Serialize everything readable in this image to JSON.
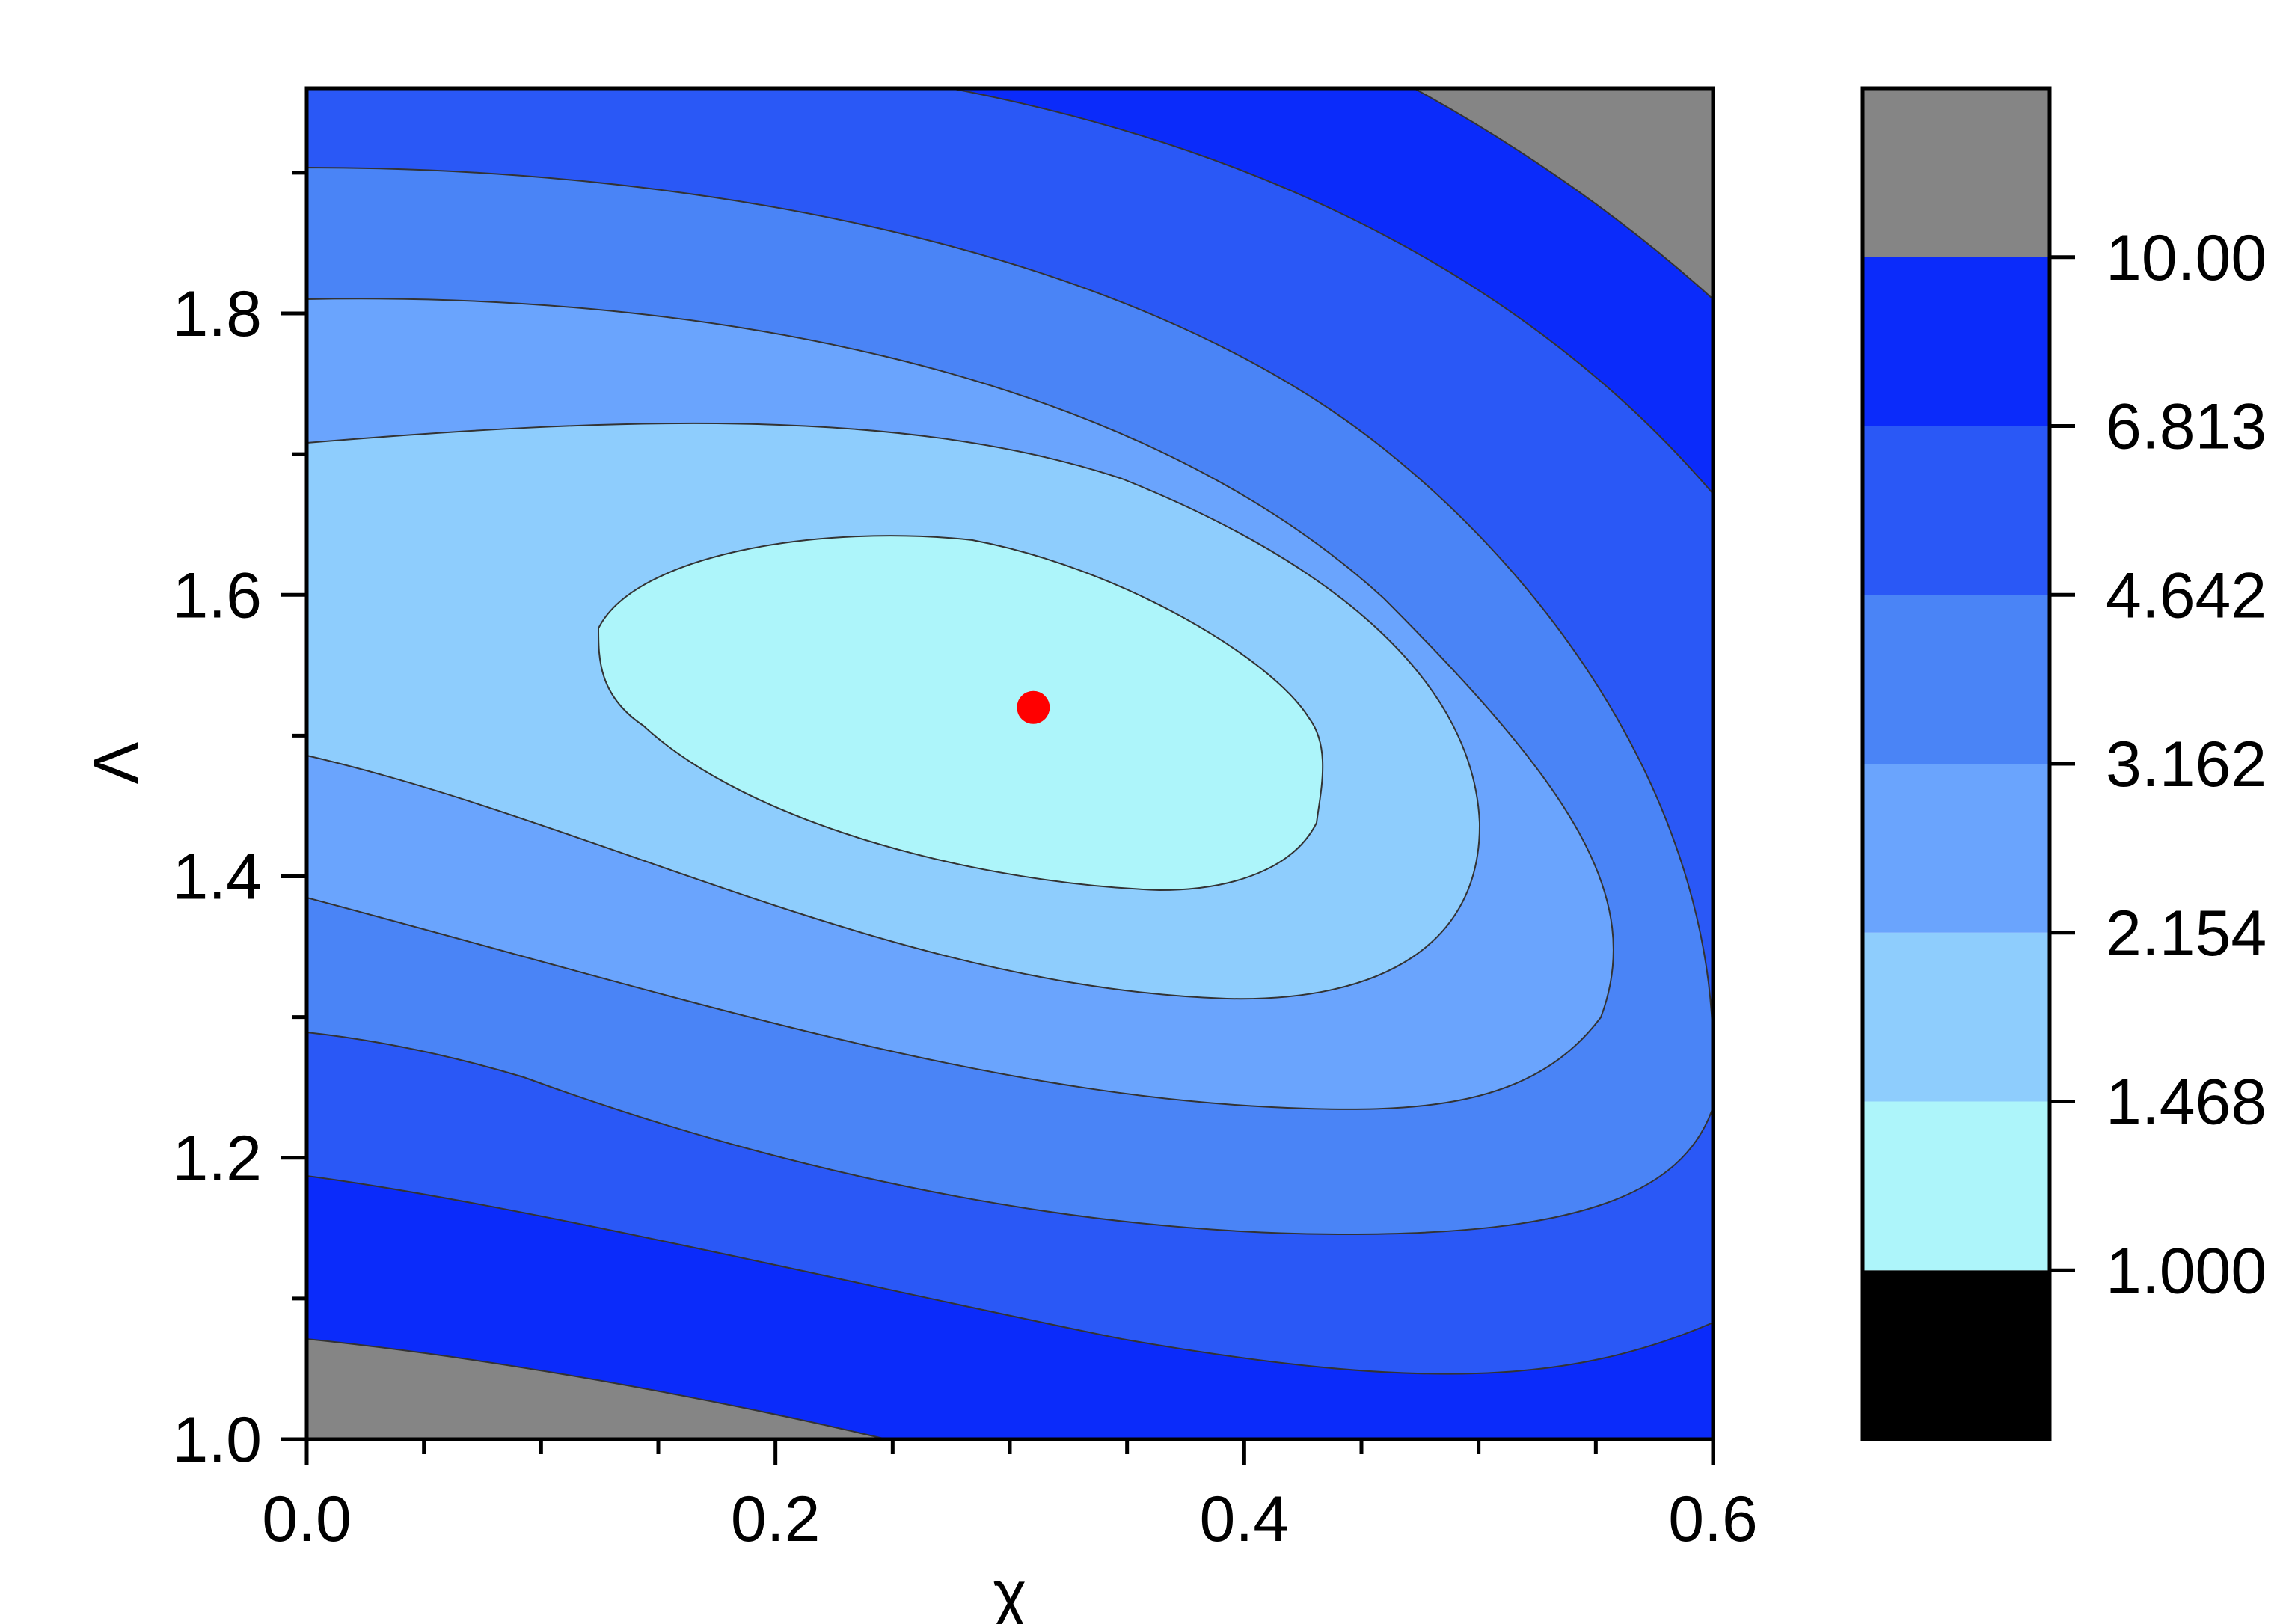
{
  "chart_data": {
    "type": "contour",
    "xlabel": "χ",
    "ylabel": "Λ",
    "xlim": [
      0.0,
      0.6
    ],
    "ylim": [
      1.0,
      1.96
    ],
    "x_ticks": [
      "0.0",
      "0.2",
      "0.4",
      "0.6"
    ],
    "y_ticks": [
      "1.0",
      "1.2",
      "1.4",
      "1.6",
      "1.8"
    ],
    "grid": false,
    "colorbar": {
      "placement": "right",
      "levels": [
        "1.000",
        "1.468",
        "2.154",
        "3.162",
        "4.642",
        "6.813",
        "10.00"
      ],
      "colors": [
        "#000000",
        "#adf5fa",
        "#8ecdfd",
        "#6aa4fd",
        "#4a84f6",
        "#2a58f6",
        "#0b2bfa",
        "#858585"
      ]
    },
    "contours": [
      {
        "level_index": 0,
        "points": [
          [
            0.0,
            1.07
          ],
          [
            0.15,
            1.025
          ],
          [
            0.25,
            1.0
          ]
        ],
        "fill": "#858585",
        "region": "bottom-left-corner"
      },
      {
        "level_index": 1,
        "points": [
          [
            0.0,
            1.18
          ],
          [
            0.2,
            1.13
          ],
          [
            0.35,
            1.08
          ],
          [
            0.5,
            1.06
          ],
          [
            0.6,
            1.08
          ]
        ],
        "fill": "#0b2bfa"
      },
      {
        "level_index": 2,
        "points": [
          [
            0.0,
            1.29
          ],
          [
            0.15,
            1.25
          ],
          [
            0.3,
            1.19
          ],
          [
            0.45,
            1.14
          ],
          [
            0.55,
            1.16
          ],
          [
            0.6,
            1.25
          ]
        ],
        "fill": "#2a58f6"
      },
      {
        "level_index": 3,
        "points": [
          [
            0.0,
            1.38
          ],
          [
            0.15,
            1.35
          ],
          [
            0.3,
            1.28
          ],
          [
            0.45,
            1.24
          ],
          [
            0.55,
            1.31
          ],
          [
            0.6,
            1.5
          ]
        ],
        "fill": "#4a84f6"
      },
      {
        "level_index": 4,
        "points": [
          [
            0.0,
            1.49
          ],
          [
            0.15,
            1.43
          ],
          [
            0.3,
            1.36
          ],
          [
            0.45,
            1.34
          ],
          [
            0.5,
            1.42
          ]
        ],
        "fill": "#6aa4fd"
      },
      {
        "level_index": 5,
        "points": [
          [
            0.12,
            1.58
          ],
          [
            0.3,
            1.64
          ],
          [
            0.43,
            1.47
          ],
          [
            0.37,
            1.4
          ]
        ],
        "fill": "#8ecdfd"
      },
      {
        "level_index": 6,
        "points": [
          [
            0.45,
            1.96
          ],
          [
            0.6,
            1.81
          ]
        ],
        "fill": "#858585",
        "region": "top-right-corner"
      }
    ],
    "marker": {
      "x": 0.31,
      "y": 1.52,
      "color": "#ff0000",
      "shape": "circle"
    }
  }
}
